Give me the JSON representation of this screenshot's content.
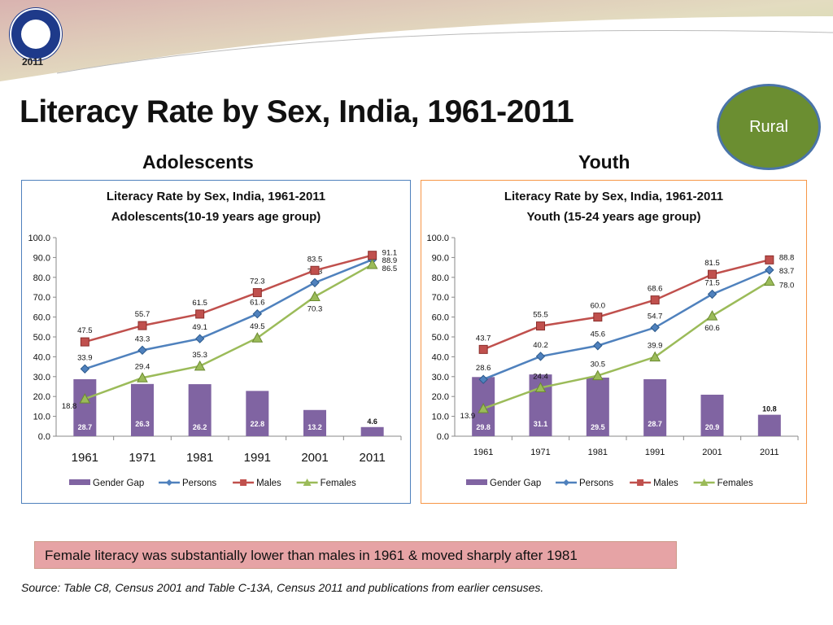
{
  "slide": {
    "logo_text": "2011",
    "title": "Literacy Rate by Sex, India, 1961-2011",
    "badge": "Rural",
    "subtitle_left": "Adolescents",
    "subtitle_right": "Youth",
    "caption": "Female literacy was substantially lower than males in 1961 & moved sharply after 1981",
    "source": "Source: Table C8, Census 2001 and Table C-13A, Census 2011 and publications from earlier censuses."
  },
  "colors": {
    "gender_gap": "#8064a2",
    "persons": "#4f81bd",
    "males": "#c0504d",
    "females": "#9bbb59",
    "left_border": "#4f81bd",
    "right_border": "#f79646"
  },
  "chart_data": [
    {
      "type": "bar+line",
      "title": "Literacy Rate by Sex, India, 1961-2011",
      "subtitle": "Adolescents(10-19 years age group)",
      "categories": [
        "1961",
        "1971",
        "1981",
        "1991",
        "2001",
        "2011"
      ],
      "ylim": [
        0,
        100
      ],
      "yticks": [
        "0.0",
        "10.0",
        "20.0",
        "30.0",
        "40.0",
        "50.0",
        "60.0",
        "70.0",
        "80.0",
        "90.0",
        "100.0"
      ],
      "legend": "bottom",
      "series": [
        {
          "name": "Gender Gap",
          "kind": "bar",
          "values": [
            28.7,
            26.3,
            26.2,
            22.8,
            13.2,
            4.6
          ]
        },
        {
          "name": "Persons",
          "kind": "line",
          "marker": "diamond",
          "values": [
            33.9,
            43.3,
            49.1,
            61.6,
            77.3,
            88.9
          ]
        },
        {
          "name": "Males",
          "kind": "line",
          "marker": "square",
          "values": [
            47.5,
            55.7,
            61.5,
            72.3,
            83.5,
            91.1
          ]
        },
        {
          "name": "Females",
          "kind": "line",
          "marker": "triangle",
          "values": [
            18.8,
            29.4,
            35.3,
            49.5,
            70.3,
            86.5
          ]
        }
      ]
    },
    {
      "type": "bar+line",
      "title": "Literacy Rate by Sex, India, 1961-2011",
      "subtitle": "Youth (15-24 years age group)",
      "categories": [
        "1961",
        "1971",
        "1981",
        "1991",
        "2001",
        "2011"
      ],
      "ylim": [
        0,
        100
      ],
      "yticks": [
        "0.0",
        "10.0",
        "20.0",
        "30.0",
        "40.0",
        "50.0",
        "60.0",
        "70.0",
        "80.0",
        "90.0",
        "100.0"
      ],
      "legend": "bottom",
      "series": [
        {
          "name": "Gender Gap",
          "kind": "bar",
          "values": [
            29.8,
            31.1,
            29.5,
            28.7,
            20.9,
            10.8
          ]
        },
        {
          "name": "Persons",
          "kind": "line",
          "marker": "diamond",
          "values": [
            28.6,
            40.2,
            45.6,
            54.7,
            71.5,
            83.7
          ]
        },
        {
          "name": "Males",
          "kind": "line",
          "marker": "square",
          "values": [
            43.7,
            55.5,
            60.0,
            68.6,
            81.5,
            88.8
          ]
        },
        {
          "name": "Females",
          "kind": "line",
          "marker": "triangle",
          "values": [
            13.9,
            24.4,
            30.5,
            39.9,
            60.6,
            78.0
          ]
        }
      ]
    }
  ]
}
